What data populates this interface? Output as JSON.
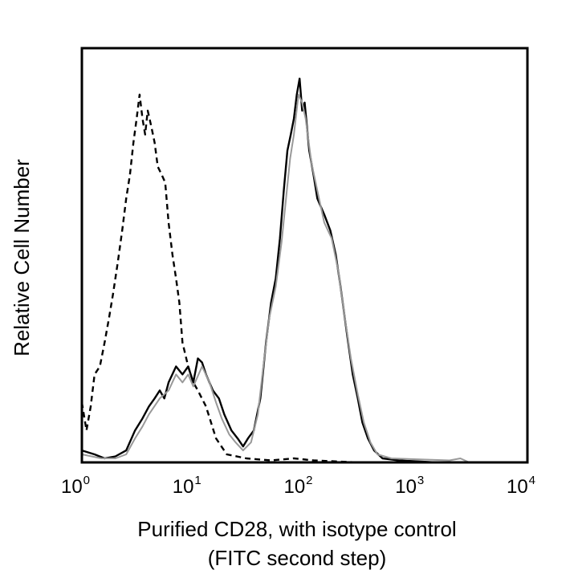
{
  "chart_data": {
    "type": "line",
    "title": "",
    "xlabel_line1": "Purified CD28, with isotype control",
    "xlabel_line2": "(FITC second step)",
    "ylabel": "Relative Cell Number",
    "x_scale": "log",
    "xlim": [
      1,
      10000
    ],
    "ylim": [
      0,
      100
    ],
    "grid": false,
    "legend": "none",
    "x_ticks": [
      {
        "base": "10",
        "exp": "0",
        "value": 1
      },
      {
        "base": "10",
        "exp": "1",
        "value": 10
      },
      {
        "base": "10",
        "exp": "2",
        "value": 100
      },
      {
        "base": "10",
        "exp": "3",
        "value": 1000
      },
      {
        "base": "10",
        "exp": "4",
        "value": 10000
      }
    ],
    "series": [
      {
        "style": "dashed",
        "color": "#000000",
        "points": [
          [
            1.0,
            15
          ],
          [
            1.1,
            8
          ],
          [
            1.2,
            14
          ],
          [
            1.3,
            22
          ],
          [
            1.45,
            24
          ],
          [
            1.6,
            30
          ],
          [
            1.75,
            36
          ],
          [
            1.9,
            42
          ],
          [
            2.1,
            50
          ],
          [
            2.3,
            58
          ],
          [
            2.5,
            66
          ],
          [
            2.7,
            72
          ],
          [
            2.9,
            80
          ],
          [
            3.1,
            86
          ],
          [
            3.3,
            92
          ],
          [
            3.5,
            86
          ],
          [
            3.7,
            82
          ],
          [
            3.9,
            88
          ],
          [
            4.2,
            84
          ],
          [
            4.5,
            80
          ],
          [
            4.8,
            74
          ],
          [
            5.2,
            72
          ],
          [
            5.6,
            70
          ],
          [
            6.0,
            60
          ],
          [
            6.5,
            52
          ],
          [
            7.0,
            46
          ],
          [
            7.5,
            40
          ],
          [
            8.0,
            30
          ],
          [
            9.0,
            24
          ],
          [
            10.0,
            20
          ],
          [
            11.0,
            18
          ],
          [
            13.0,
            14
          ],
          [
            16.0,
            6
          ],
          [
            20.0,
            2
          ],
          [
            30.0,
            1
          ],
          [
            50.0,
            0.5
          ],
          [
            80.0,
            1
          ],
          [
            120.0,
            0.5
          ],
          [
            300.0,
            0
          ],
          [
            1000.0,
            0
          ],
          [
            10000.0,
            0
          ]
        ]
      },
      {
        "style": "solid",
        "color": "#000000",
        "points": [
          [
            1.0,
            3
          ],
          [
            1.3,
            2
          ],
          [
            1.6,
            1
          ],
          [
            2.0,
            1.5
          ],
          [
            2.5,
            3
          ],
          [
            3.0,
            8
          ],
          [
            3.5,
            11
          ],
          [
            4.0,
            14
          ],
          [
            4.5,
            16
          ],
          [
            5.0,
            18
          ],
          [
            5.5,
            16
          ],
          [
            6.0,
            20
          ],
          [
            7.0,
            24
          ],
          [
            8.0,
            22
          ],
          [
            9.0,
            24
          ],
          [
            10.0,
            20
          ],
          [
            11.0,
            26
          ],
          [
            12.0,
            25
          ],
          [
            13.0,
            22
          ],
          [
            15.0,
            18
          ],
          [
            17.0,
            16
          ],
          [
            19.0,
            12
          ],
          [
            22.0,
            8
          ],
          [
            25.0,
            6
          ],
          [
            28.0,
            4
          ],
          [
            31.0,
            6
          ],
          [
            35.0,
            8
          ],
          [
            40.0,
            16
          ],
          [
            45.0,
            30
          ],
          [
            50.0,
            40
          ],
          [
            55.0,
            46
          ],
          [
            60.0,
            56
          ],
          [
            65.0,
            68
          ],
          [
            70.0,
            78
          ],
          [
            75.0,
            82
          ],
          [
            80.0,
            86
          ],
          [
            85.0,
            92
          ],
          [
            90.0,
            96
          ],
          [
            95.0,
            88
          ],
          [
            100.0,
            90
          ],
          [
            110.0,
            78
          ],
          [
            120.0,
            72
          ],
          [
            130.0,
            66
          ],
          [
            150.0,
            62
          ],
          [
            170.0,
            58
          ],
          [
            190.0,
            52
          ],
          [
            210.0,
            44
          ],
          [
            240.0,
            32
          ],
          [
            270.0,
            22
          ],
          [
            300.0,
            16
          ],
          [
            330.0,
            10
          ],
          [
            370.0,
            6
          ],
          [
            420.0,
            3
          ],
          [
            500.0,
            1
          ],
          [
            700.0,
            0.5
          ],
          [
            1500.0,
            0
          ],
          [
            10000.0,
            0
          ]
        ]
      },
      {
        "style": "solid",
        "color": "#999999",
        "points": [
          [
            1.0,
            2
          ],
          [
            1.5,
            1
          ],
          [
            2.0,
            1
          ],
          [
            2.5,
            2
          ],
          [
            3.0,
            6
          ],
          [
            3.5,
            9
          ],
          [
            4.0,
            12
          ],
          [
            5.0,
            16
          ],
          [
            6.0,
            18
          ],
          [
            7.0,
            22
          ],
          [
            8.0,
            20
          ],
          [
            9.0,
            22
          ],
          [
            10.0,
            19
          ],
          [
            12.0,
            24
          ],
          [
            14.0,
            20
          ],
          [
            16.0,
            15
          ],
          [
            18.0,
            11
          ],
          [
            21.0,
            7
          ],
          [
            24.0,
            5
          ],
          [
            28.0,
            3
          ],
          [
            33.0,
            5
          ],
          [
            38.0,
            12
          ],
          [
            43.0,
            25
          ],
          [
            48.0,
            36
          ],
          [
            55.0,
            44
          ],
          [
            62.0,
            55
          ],
          [
            68.0,
            66
          ],
          [
            74.0,
            76
          ],
          [
            80.0,
            82
          ],
          [
            88.0,
            92
          ],
          [
            95.0,
            90
          ],
          [
            102.0,
            86
          ],
          [
            115.0,
            75
          ],
          [
            130.0,
            68
          ],
          [
            150.0,
            60
          ],
          [
            175.0,
            56
          ],
          [
            200.0,
            48
          ],
          [
            230.0,
            36
          ],
          [
            260.0,
            26
          ],
          [
            300.0,
            17
          ],
          [
            340.0,
            10
          ],
          [
            390.0,
            5
          ],
          [
            450.0,
            2
          ],
          [
            600.0,
            1
          ],
          [
            2000.0,
            0.5
          ],
          [
            2500.0,
            1
          ],
          [
            3000.0,
            0
          ],
          [
            10000.0,
            0
          ]
        ]
      }
    ]
  }
}
